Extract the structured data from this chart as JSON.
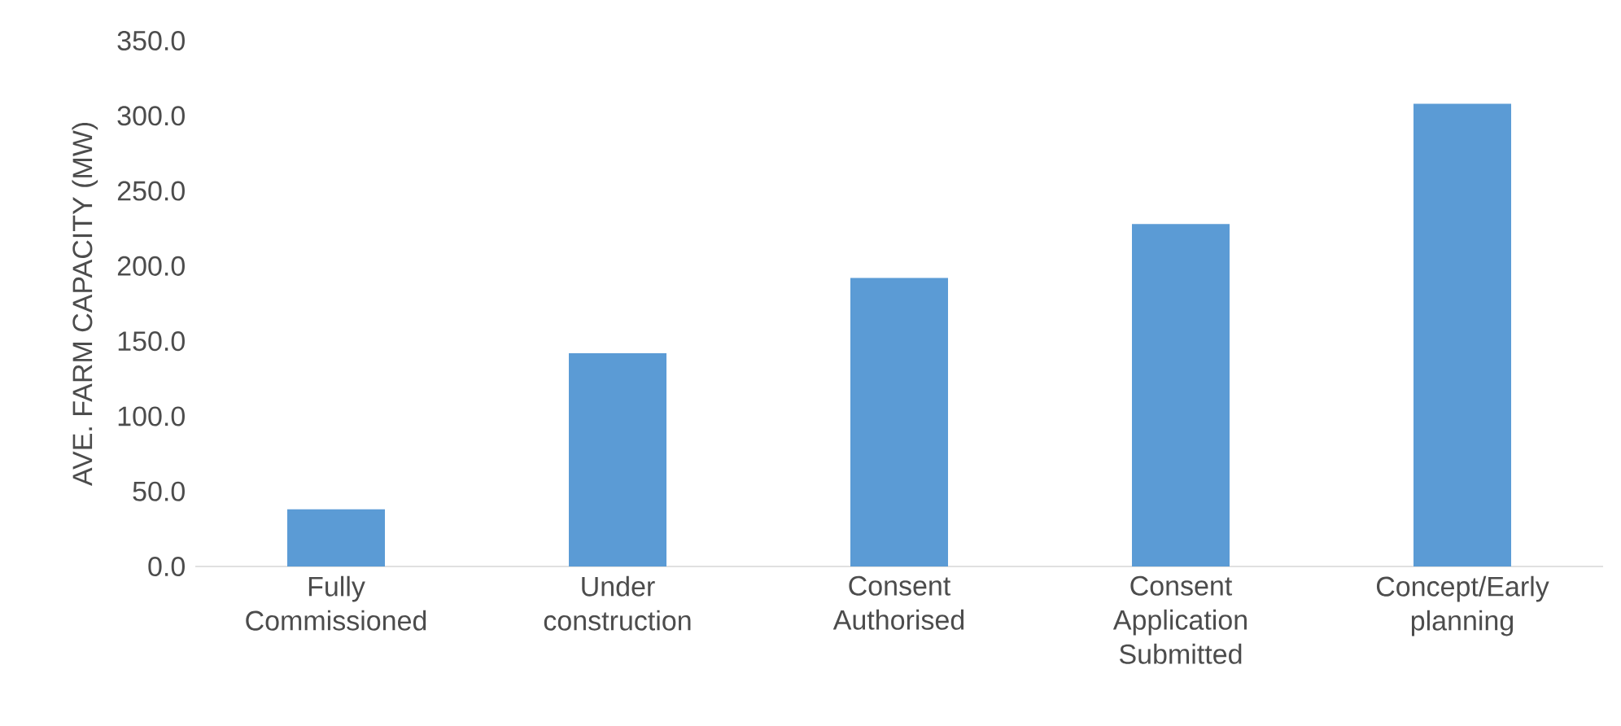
{
  "chart_data": {
    "type": "bar",
    "ylabel": "AVE. FARM CAPACITY (MW)",
    "categories": [
      "Fully Commissioned",
      "Under construction",
      "Consent Authorised",
      "Consent Application Submitted",
      "Concept/Early planning"
    ],
    "values": [
      38,
      142,
      192,
      228,
      308
    ],
    "color": "#5b9bd5",
    "ylim": [
      0,
      350
    ],
    "yticks": [
      {
        "value": 0,
        "label": "0.0"
      },
      {
        "value": 50,
        "label": "50.0"
      },
      {
        "value": 100,
        "label": "100.0"
      },
      {
        "value": 150,
        "label": "150.0"
      },
      {
        "value": 200,
        "label": "200.0"
      },
      {
        "value": 250,
        "label": "250.0"
      },
      {
        "value": 300,
        "label": "300.0"
      },
      {
        "value": 350,
        "label": "350.0"
      }
    ],
    "grid": false
  }
}
